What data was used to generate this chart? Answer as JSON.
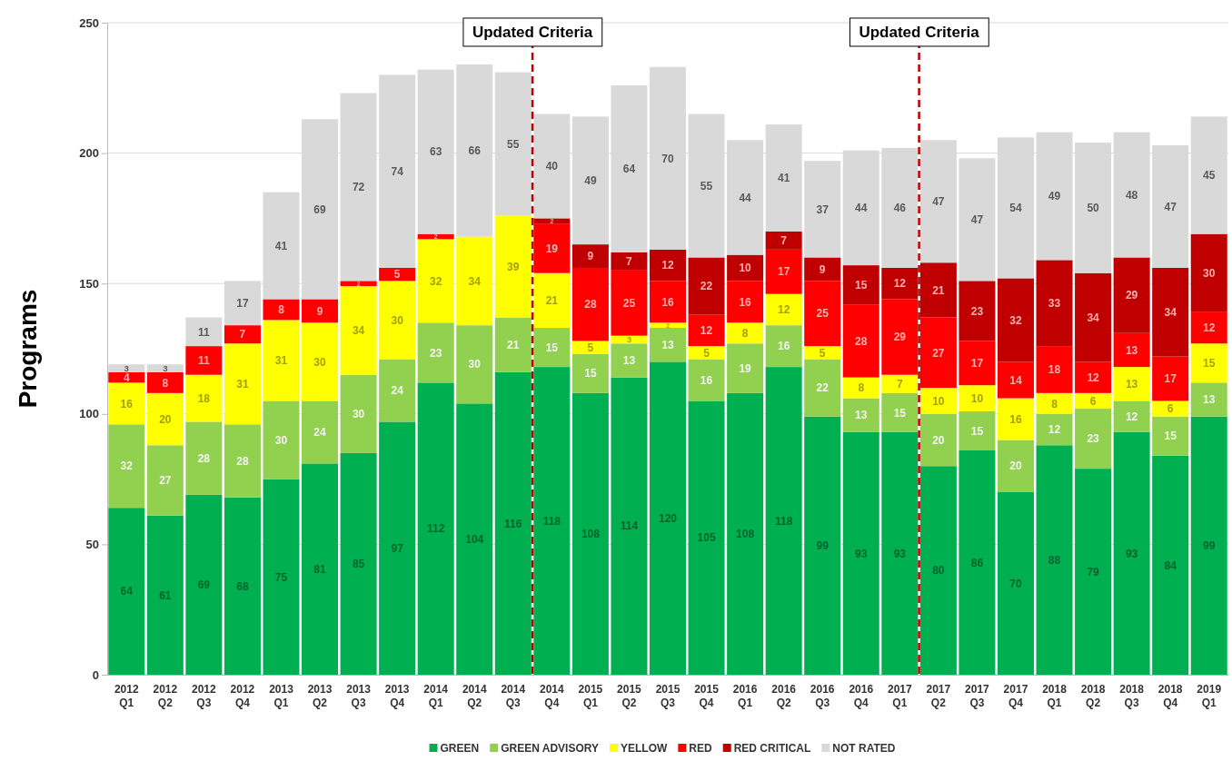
{
  "chart_data": {
    "type": "bar",
    "stacked": true,
    "ylabel": "Programs",
    "ylim": [
      0,
      250
    ],
    "yticks": [
      0,
      50,
      100,
      150,
      200,
      250
    ],
    "grid": "y",
    "legend": "bottom",
    "data_labels": true,
    "categories": [
      "2012\nQ1",
      "2012\nQ2",
      "2012\nQ3",
      "2012\nQ4",
      "2013\nQ1",
      "2013\nQ2",
      "2013\nQ3",
      "2013\nQ4",
      "2014\nQ1",
      "2014\nQ2",
      "2014\nQ3",
      "2014\nQ4",
      "2015\nQ1",
      "2015\nQ2",
      "2015\nQ3",
      "2015\nQ4",
      "2016\nQ1",
      "2016\nQ2",
      "2016\nQ3",
      "2016\nQ4",
      "2017\nQ1",
      "2017\nQ2",
      "2017\nQ3",
      "2017\nQ4",
      "2018\nQ1",
      "2018\nQ2",
      "2018\nQ3",
      "2018\nQ4",
      "2019\nQ1"
    ],
    "series": [
      {
        "name": "GREEN",
        "color": "#00b050",
        "values": [
          64,
          61,
          69,
          68,
          75,
          81,
          85,
          97,
          112,
          104,
          116,
          118,
          108,
          114,
          120,
          105,
          108,
          118,
          99,
          93,
          93,
          80,
          86,
          70,
          88,
          79,
          93,
          84,
          99
        ]
      },
      {
        "name": "GREEN ADVISORY",
        "color": "#92d050",
        "values": [
          32,
          27,
          28,
          28,
          30,
          24,
          30,
          24,
          23,
          30,
          21,
          15,
          15,
          13,
          13,
          16,
          19,
          16,
          22,
          13,
          15,
          20,
          15,
          20,
          12,
          23,
          12,
          15,
          13
        ]
      },
      {
        "name": "YELLOW",
        "color": "#ffff00",
        "values": [
          16,
          20,
          18,
          31,
          31,
          30,
          34,
          30,
          32,
          34,
          39,
          21,
          5,
          3,
          2,
          5,
          8,
          12,
          5,
          8,
          7,
          10,
          10,
          16,
          8,
          6,
          13,
          6,
          15
        ]
      },
      {
        "name": "RED",
        "color": "#ff0000",
        "values": [
          4,
          8,
          11,
          7,
          8,
          9,
          2,
          5,
          2,
          null,
          null,
          19,
          28,
          25,
          16,
          12,
          16,
          17,
          25,
          28,
          29,
          27,
          17,
          14,
          18,
          12,
          13,
          17,
          12
        ]
      },
      {
        "name": "RED CRITICAL",
        "color": "#c00000",
        "values": [
          null,
          null,
          null,
          null,
          null,
          null,
          null,
          null,
          null,
          null,
          null,
          2,
          9,
          7,
          12,
          22,
          10,
          7,
          9,
          15,
          12,
          21,
          23,
          32,
          33,
          34,
          29,
          34,
          30
        ]
      },
      {
        "name": "NOT RATED",
        "color": "#d9d9d9",
        "values": [
          3,
          3,
          11,
          17,
          41,
          69,
          72,
          74,
          63,
          66,
          55,
          40,
          49,
          64,
          70,
          55,
          44,
          41,
          37,
          44,
          46,
          47,
          47,
          54,
          49,
          50,
          48,
          47,
          45
        ]
      }
    ],
    "annotations": [
      "Updated Criteria",
      "Updated Criteria"
    ]
  }
}
